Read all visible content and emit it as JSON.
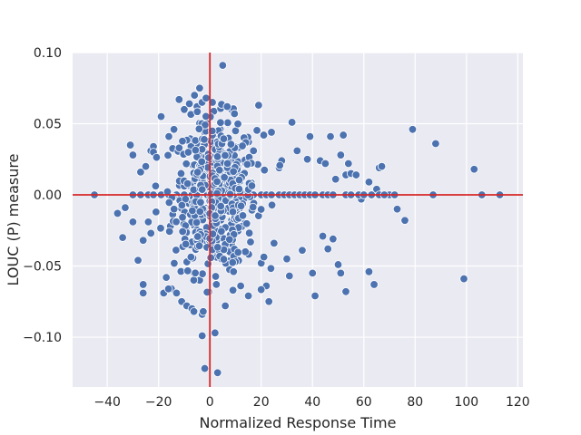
{
  "chart_data": {
    "type": "scatter",
    "title": "",
    "xlabel": "Normalized Response Time",
    "ylabel": "LOUC (P) measure",
    "xlim": [
      -53.5,
      122
    ],
    "ylim": [
      -0.135,
      0.1
    ],
    "xticks": [
      -40,
      -20,
      0,
      20,
      40,
      60,
      80,
      100,
      120
    ],
    "xtick_labels": [
      "−40",
      "−20",
      "0",
      "20",
      "40",
      "60",
      "80",
      "100",
      "120"
    ],
    "yticks": [
      -0.1,
      -0.05,
      0.0,
      0.05,
      0.1
    ],
    "ytick_labels": [
      "−0.10",
      "−0.05",
      "0.00",
      "0.05",
      "0.10"
    ],
    "grid": true,
    "reference_lines": {
      "x": 0,
      "y": 0,
      "color": "#d62728"
    },
    "marker_color": "#4c72b0",
    "background_color": "#eaeaf2",
    "series": [
      {
        "points": [
          [
            -45,
            0.0
          ],
          [
            -36,
            -0.013
          ],
          [
            -34,
            -0.03
          ],
          [
            -33,
            -0.009
          ],
          [
            -31,
            0.035
          ],
          [
            -30,
            0.028
          ],
          [
            -30,
            -0.019
          ],
          [
            -28,
            -0.046
          ],
          [
            -27,
            0.016
          ],
          [
            -26,
            -0.063
          ],
          [
            -26,
            -0.069
          ],
          [
            -26,
            -0.032
          ],
          [
            -25,
            0.02
          ],
          [
            -24,
            -0.019
          ],
          [
            -23,
            0.031
          ],
          [
            -23,
            -0.027
          ],
          [
            -22,
            0.034
          ],
          [
            -21,
            -0.012
          ],
          [
            -19,
            0.055
          ],
          [
            -18,
            -0.069
          ],
          [
            -17,
            -0.058
          ],
          [
            -16,
            0.041
          ],
          [
            -15,
            -0.066
          ],
          [
            -14,
            0.046
          ],
          [
            -13,
            -0.069
          ],
          [
            -12,
            0.067
          ],
          [
            -11,
            -0.075
          ],
          [
            -10,
            0.06
          ],
          [
            -9,
            -0.078
          ],
          [
            -8,
            0.064
          ],
          [
            -7,
            -0.08
          ],
          [
            -6,
            0.07
          ],
          [
            -5,
            0.062
          ],
          [
            -4,
            0.075
          ],
          [
            -4,
            -0.06
          ],
          [
            -3,
            -0.084
          ],
          [
            -3,
            -0.099
          ],
          [
            -2,
            -0.122
          ],
          [
            -2,
            0.044
          ],
          [
            -1,
            -0.069
          ],
          [
            1,
            0.065
          ],
          [
            2,
            -0.097
          ],
          [
            3,
            -0.125
          ],
          [
            4,
            0.046
          ],
          [
            5,
            0.091
          ],
          [
            6,
            -0.078
          ],
          [
            7,
            0.05
          ],
          [
            9,
            -0.067
          ],
          [
            10,
            0.045
          ],
          [
            12,
            -0.064
          ],
          [
            14,
            0.038
          ],
          [
            15,
            -0.071
          ],
          [
            17,
            0.031
          ],
          [
            19,
            0.063
          ],
          [
            20,
            -0.048
          ],
          [
            21,
            0.042
          ],
          [
            22,
            -0.064
          ],
          [
            23,
            -0.075
          ],
          [
            24,
            0.044
          ],
          [
            25,
            -0.034
          ],
          [
            27,
            0.019
          ],
          [
            28,
            0.024
          ],
          [
            30,
            -0.045
          ],
          [
            31,
            -0.057
          ],
          [
            32,
            0.051
          ],
          [
            34,
            0.031
          ],
          [
            36,
            -0.039
          ],
          [
            38,
            0.025
          ],
          [
            39,
            0.041
          ],
          [
            40,
            -0.055
          ],
          [
            41,
            -0.071
          ],
          [
            43,
            0.024
          ],
          [
            44,
            -0.029
          ],
          [
            45,
            0.022
          ],
          [
            46,
            -0.038
          ],
          [
            47,
            0.041
          ],
          [
            48,
            -0.031
          ],
          [
            49,
            0.011
          ],
          [
            50,
            -0.049
          ],
          [
            51,
            -0.055
          ],
          [
            51,
            0.028
          ],
          [
            52,
            0.042
          ],
          [
            53,
            -0.068
          ],
          [
            53,
            0.014
          ],
          [
            54,
            0.022
          ],
          [
            55,
            0.015
          ],
          [
            57,
            0.014
          ],
          [
            59,
            -0.003
          ],
          [
            62,
            -0.054
          ],
          [
            62,
            0.009
          ],
          [
            64,
            -0.063
          ],
          [
            65,
            0.004
          ],
          [
            66,
            0.019
          ],
          [
            67,
            0.02
          ],
          [
            70,
            0.0
          ],
          [
            73,
            -0.01
          ],
          [
            76,
            -0.018
          ],
          [
            79,
            0.046
          ],
          [
            87,
            0.0
          ],
          [
            88,
            0.036
          ],
          [
            99,
            -0.059
          ],
          [
            103,
            0.018
          ],
          [
            106,
            0.0
          ],
          [
            113,
            0.0
          ],
          [
            -30,
            0.0
          ],
          [
            -27,
            0.0
          ],
          [
            -24,
            0.0
          ],
          [
            -22,
            0.0
          ],
          [
            -19,
            0.0
          ],
          [
            -16,
            0.0
          ],
          [
            -13,
            0.0
          ],
          [
            -10,
            0.0
          ],
          [
            -7,
            0.0
          ],
          [
            -4,
            0.0
          ],
          [
            -1,
            0.0
          ],
          [
            2,
            0.0
          ],
          [
            5,
            0.0
          ],
          [
            8,
            0.0
          ],
          [
            11,
            0.0
          ],
          [
            14,
            0.0
          ],
          [
            17,
            0.0
          ],
          [
            20,
            0.0
          ],
          [
            22,
            0.0
          ],
          [
            24,
            0.0
          ],
          [
            27,
            0.0
          ],
          [
            29,
            0.0
          ],
          [
            31,
            0.0
          ],
          [
            33,
            0.0
          ],
          [
            35,
            0.0
          ],
          [
            37,
            0.0
          ],
          [
            39,
            0.0
          ],
          [
            41,
            0.0
          ],
          [
            44,
            0.0
          ],
          [
            46,
            0.0
          ],
          [
            48,
            0.0
          ],
          [
            53,
            0.0
          ],
          [
            55,
            0.0
          ],
          [
            58,
            0.0
          ],
          [
            60,
            0.0
          ],
          [
            63,
            0.0
          ],
          [
            66,
            0.0
          ],
          [
            68,
            0.0
          ],
          [
            72,
            0.0
          ]
        ],
        "dense_cloud": {
          "count": 560,
          "x_center": 2,
          "x_spread": 8,
          "y_center": 0,
          "y_spread": 0.026
        }
      }
    ]
  }
}
